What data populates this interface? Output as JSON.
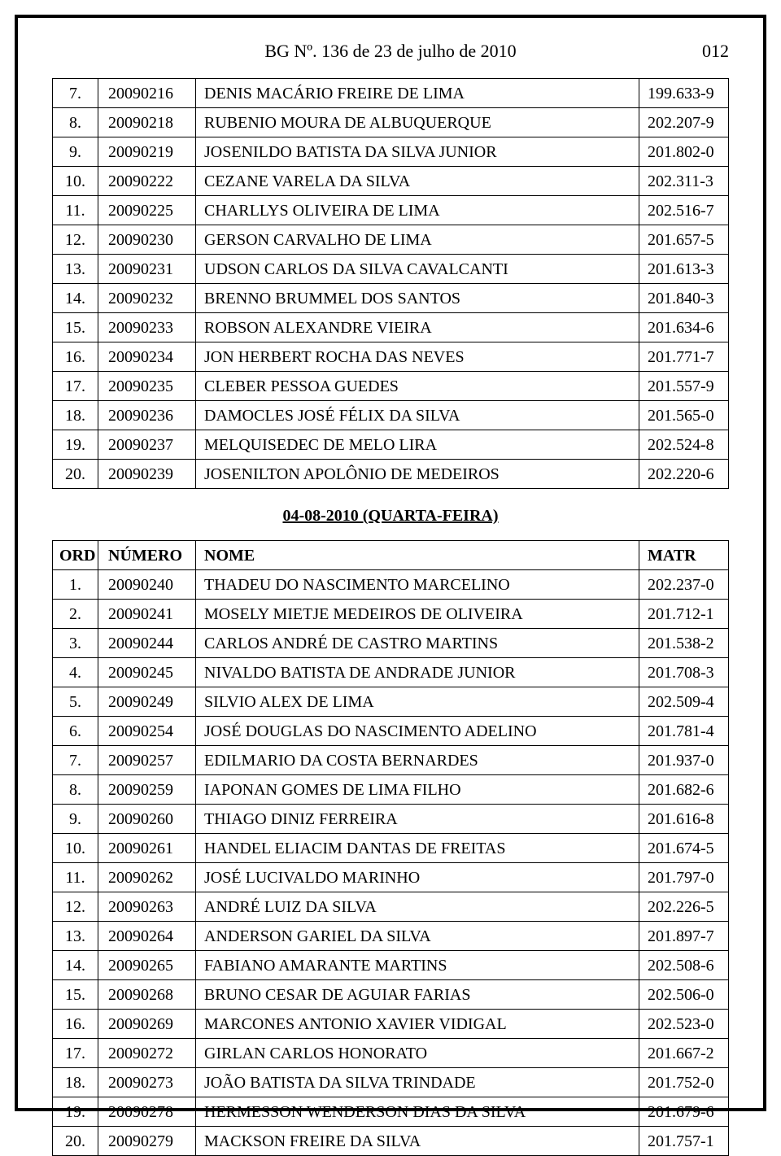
{
  "header": {
    "title": "BG Nº. 136 de 23 de julho de 2010",
    "page_number": "012"
  },
  "table1": {
    "rows": [
      {
        "ord": "7.",
        "num": "20090216",
        "name": "DENIS MACÁRIO FREIRE DE LIMA",
        "matr": "199.633-9"
      },
      {
        "ord": "8.",
        "num": "20090218",
        "name": "RUBENIO MOURA DE ALBUQUERQUE",
        "matr": "202.207-9"
      },
      {
        "ord": "9.",
        "num": "20090219",
        "name": "JOSENILDO BATISTA DA SILVA JUNIOR",
        "matr": "201.802-0"
      },
      {
        "ord": "10.",
        "num": "20090222",
        "name": "CEZANE VARELA DA SILVA",
        "matr": "202.311-3"
      },
      {
        "ord": "11.",
        "num": "20090225",
        "name": "CHARLLYS OLIVEIRA DE LIMA",
        "matr": "202.516-7"
      },
      {
        "ord": "12.",
        "num": "20090230",
        "name": "GERSON CARVALHO DE LIMA",
        "matr": "201.657-5"
      },
      {
        "ord": "13.",
        "num": "20090231",
        "name": "UDSON CARLOS DA SILVA CAVALCANTI",
        "matr": "201.613-3"
      },
      {
        "ord": "14.",
        "num": "20090232",
        "name": "BRENNO BRUMMEL DOS SANTOS",
        "matr": "201.840-3"
      },
      {
        "ord": "15.",
        "num": "20090233",
        "name": "ROBSON ALEXANDRE VIEIRA",
        "matr": "201.634-6"
      },
      {
        "ord": "16.",
        "num": "20090234",
        "name": "JON HERBERT ROCHA DAS NEVES",
        "matr": "201.771-7"
      },
      {
        "ord": "17.",
        "num": "20090235",
        "name": "CLEBER PESSOA GUEDES",
        "matr": "201.557-9"
      },
      {
        "ord": "18.",
        "num": "20090236",
        "name": "DAMOCLES JOSÉ FÉLIX DA SILVA",
        "matr": "201.565-0"
      },
      {
        "ord": "19.",
        "num": "20090237",
        "name": "MELQUISEDEC DE MELO LIRA",
        "matr": "202.524-8"
      },
      {
        "ord": "20.",
        "num": "20090239",
        "name": "JOSENILTON APOLÔNIO DE MEDEIROS",
        "matr": "202.220-6"
      }
    ]
  },
  "section_title": "04-08-2010 (QUARTA-FEIRA)",
  "table2": {
    "columns": {
      "ord": "ORD",
      "num": "NÚMERO",
      "name": "NOME",
      "matr": "MATR"
    },
    "rows": [
      {
        "ord": "1.",
        "num": "20090240",
        "name": "THADEU DO NASCIMENTO MARCELINO",
        "matr": "202.237-0"
      },
      {
        "ord": "2.",
        "num": "20090241",
        "name": "MOSELY MIETJE MEDEIROS DE OLIVEIRA",
        "matr": "201.712-1"
      },
      {
        "ord": "3.",
        "num": "20090244",
        "name": "CARLOS ANDRÉ DE CASTRO MARTINS",
        "matr": "201.538-2"
      },
      {
        "ord": "4.",
        "num": "20090245",
        "name": "NIVALDO BATISTA DE ANDRADE JUNIOR",
        "matr": "201.708-3"
      },
      {
        "ord": "5.",
        "num": "20090249",
        "name": "SILVIO ALEX DE LIMA",
        "matr": "202.509-4"
      },
      {
        "ord": "6.",
        "num": "20090254",
        "name": "JOSÉ  DOUGLAS DO NASCIMENTO ADELINO",
        "matr": "201.781-4"
      },
      {
        "ord": "7.",
        "num": "20090257",
        "name": "EDILMARIO DA COSTA BERNARDES",
        "matr": "201.937-0"
      },
      {
        "ord": "8.",
        "num": "20090259",
        "name": "IAPONAN GOMES DE LIMA FILHO",
        "matr": "201.682-6"
      },
      {
        "ord": "9.",
        "num": "20090260",
        "name": "THIAGO DINIZ FERREIRA",
        "matr": "201.616-8"
      },
      {
        "ord": "10.",
        "num": "20090261",
        "name": "HANDEL ELIACIM DANTAS DE FREITAS",
        "matr": "201.674-5"
      },
      {
        "ord": "11.",
        "num": "20090262",
        "name": "JOSÉ LUCIVALDO MARINHO",
        "matr": "201.797-0"
      },
      {
        "ord": "12.",
        "num": "20090263",
        "name": "ANDRÉ LUIZ DA SILVA",
        "matr": "202.226-5"
      },
      {
        "ord": "13.",
        "num": "20090264",
        "name": "ANDERSON GARIEL DA SILVA",
        "matr": "201.897-7"
      },
      {
        "ord": "14.",
        "num": "20090265",
        "name": "FABIANO AMARANTE MARTINS",
        "matr": "202.508-6"
      },
      {
        "ord": "15.",
        "num": "20090268",
        "name": "BRUNO CESAR DE AGUIAR FARIAS",
        "matr": "202.506-0"
      },
      {
        "ord": "16.",
        "num": "20090269",
        "name": "MARCONES ANTONIO XAVIER VIDIGAL",
        "matr": "202.523-0"
      },
      {
        "ord": "17.",
        "num": "20090272",
        "name": "GIRLAN CARLOS HONORATO",
        "matr": "201.667-2"
      },
      {
        "ord": "18.",
        "num": "20090273",
        "name": "JOÃO BATISTA DA SILVA TRINDADE",
        "matr": "201.752-0"
      },
      {
        "ord": "19.",
        "num": "20090278",
        "name": "HERMESSON WENDERSON DIAS DA SILVA",
        "matr": "201.679-6"
      },
      {
        "ord": "20.",
        "num": "20090279",
        "name": "MACKSON FREIRE DA SILVA",
        "matr": "201.757-1"
      }
    ]
  }
}
